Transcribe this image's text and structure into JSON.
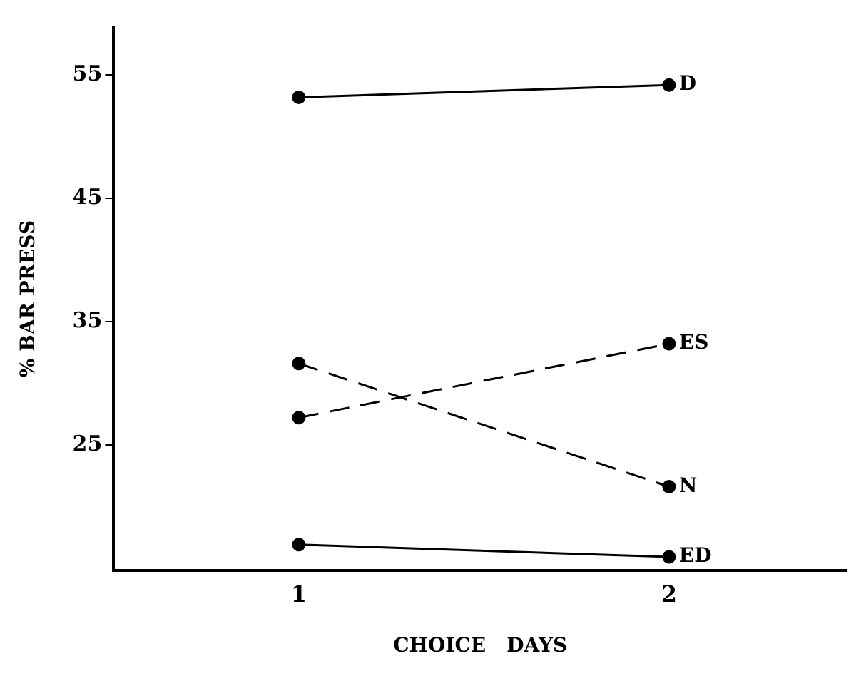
{
  "chart_data": {
    "type": "line",
    "xlabel": "CHOICE   DAYS",
    "ylabel": "% BAR PRESS",
    "x": [
      1,
      2
    ],
    "series": [
      {
        "name": "D",
        "color": "#000000",
        "values": [
          53.2,
          54.2
        ],
        "marker": "circle",
        "line_style": "solid"
      },
      {
        "name": "ES",
        "color": "#000000",
        "values": [
          27.2,
          33.2
        ],
        "marker": "circle",
        "line_style": "dashed"
      },
      {
        "name": "N",
        "color": "#000000",
        "values": [
          31.6,
          21.6
        ],
        "marker": "circle",
        "line_style": "dashed"
      },
      {
        "name": "ED",
        "color": "#000000",
        "values": [
          16.9,
          15.9
        ],
        "marker": "circle",
        "line_style": "solid"
      }
    ],
    "xlim": [
      0.5,
      2.48
    ],
    "xticks": [
      1,
      2
    ],
    "ylim": [
      14.8,
      58.9
    ],
    "yticks": [
      25,
      35,
      45,
      55
    ],
    "grid": false,
    "legend": false
  }
}
